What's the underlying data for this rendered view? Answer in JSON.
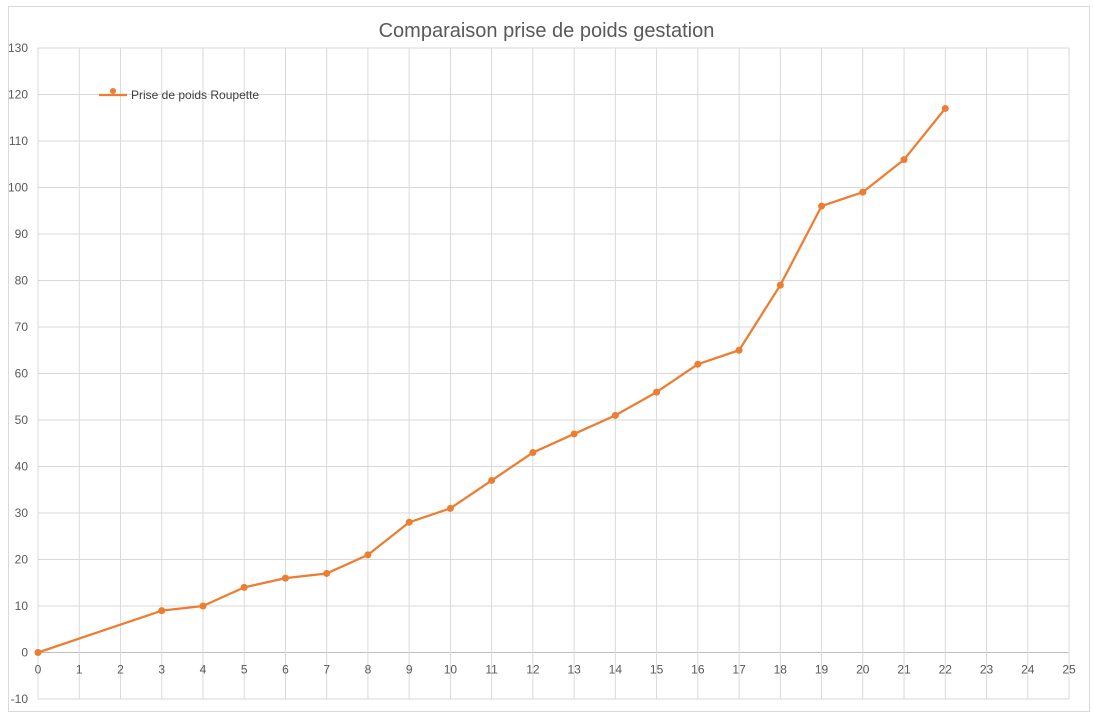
{
  "chart_data": {
    "type": "line",
    "title": "Comparaison prise de poids gestation",
    "xlabel": "",
    "ylabel": "",
    "xlim": [
      0,
      25
    ],
    "ylim": [
      -10,
      130
    ],
    "x_ticks": [
      0,
      1,
      2,
      3,
      4,
      5,
      6,
      7,
      8,
      9,
      10,
      11,
      12,
      13,
      14,
      15,
      16,
      17,
      18,
      19,
      20,
      21,
      22,
      23,
      24,
      25
    ],
    "y_ticks": [
      -10,
      0,
      10,
      20,
      30,
      40,
      50,
      60,
      70,
      80,
      90,
      100,
      110,
      120,
      130
    ],
    "grid": true,
    "legend_position": "top-left",
    "series": [
      {
        "name": "Prise de poids Roupette",
        "color": "#ED7D31",
        "points": [
          {
            "x": 0,
            "y": 0
          },
          {
            "x": 3,
            "y": 9
          },
          {
            "x": 4,
            "y": 10
          },
          {
            "x": 5,
            "y": 14
          },
          {
            "x": 6,
            "y": 16
          },
          {
            "x": 7,
            "y": 17
          },
          {
            "x": 8,
            "y": 21
          },
          {
            "x": 9,
            "y": 28
          },
          {
            "x": 10,
            "y": 31
          },
          {
            "x": 11,
            "y": 37
          },
          {
            "x": 12,
            "y": 43
          },
          {
            "x": 13,
            "y": 47
          },
          {
            "x": 14,
            "y": 51
          },
          {
            "x": 15,
            "y": 56
          },
          {
            "x": 16,
            "y": 62
          },
          {
            "x": 17,
            "y": 65
          },
          {
            "x": 18,
            "y": 79
          },
          {
            "x": 19,
            "y": 96
          },
          {
            "x": 20,
            "y": 99
          },
          {
            "x": 21,
            "y": 106
          },
          {
            "x": 22,
            "y": 117
          }
        ]
      }
    ],
    "colors": {
      "grid": "#d9d9d9",
      "axis_text": "#595959",
      "zero_axis": "#bfbfbf"
    }
  }
}
